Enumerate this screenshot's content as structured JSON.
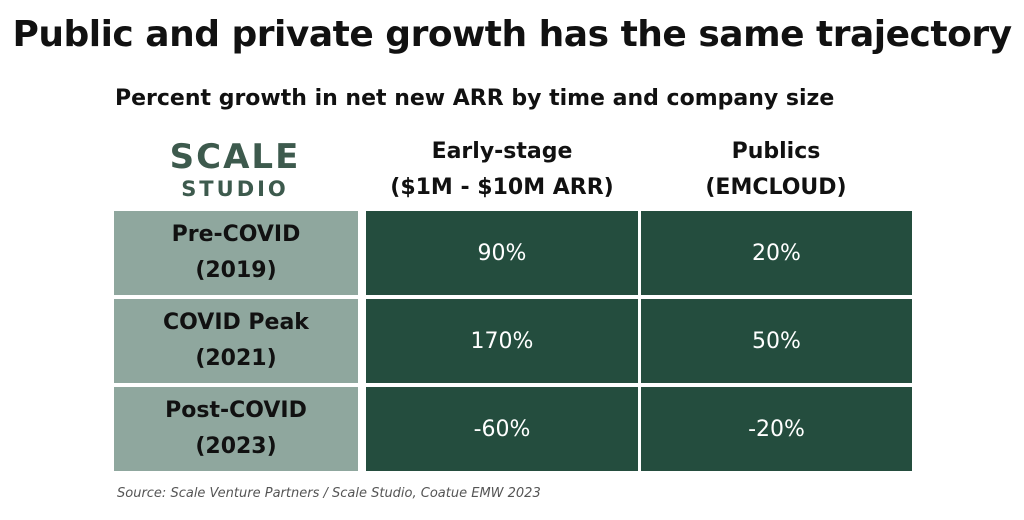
{
  "title": "Public and private growth has the same trajectory",
  "subtitle": "Percent growth in net new ARR by time and company size",
  "logo": {
    "line1": "SCALE",
    "line2": "STUDIO"
  },
  "columns": [
    {
      "line1": "Early-stage",
      "line2": "($1M - $10M ARR)"
    },
    {
      "line1": "Publics",
      "line2": "(EMCLOUD)"
    }
  ],
  "rows": [
    {
      "line1": "Pre-COVID",
      "line2": "(2019)",
      "cells": [
        "90%",
        "20%"
      ]
    },
    {
      "line1": "COVID Peak",
      "line2": "(2021)",
      "cells": [
        "170%",
        "50%"
      ]
    },
    {
      "line1": "Post-COVID",
      "line2": "(2023)",
      "cells": [
        "-60%",
        "-20%"
      ]
    }
  ],
  "source": "Source: Scale Venture Partners / Scale Studio, Coatue EMW 2023",
  "colors": {
    "row_header_bg": "#8fa79e",
    "cell_bg": "#244d3e",
    "logo": "#3d5a4d"
  },
  "chart_data": {
    "type": "table",
    "title": "Public and private growth has the same trajectory",
    "subtitle": "Percent growth in net new ARR by time and company size",
    "columns": [
      "Early-stage ($1M - $10M ARR)",
      "Publics (EMCLOUD)"
    ],
    "rows": [
      "Pre-COVID (2019)",
      "COVID Peak (2021)",
      "Post-COVID (2023)"
    ],
    "values": [
      [
        90,
        20
      ],
      [
        170,
        50
      ],
      [
        -60,
        -20
      ]
    ],
    "unit": "%"
  }
}
